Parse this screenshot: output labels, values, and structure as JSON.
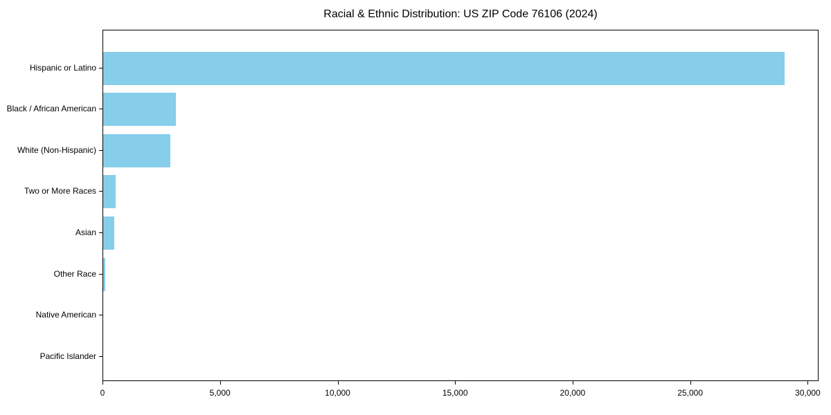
{
  "chart_data": {
    "type": "bar",
    "orientation": "horizontal",
    "title": "Racial & Ethnic Distribution: US ZIP Code 76106 (2024)",
    "categories": [
      "Hispanic or Latino",
      "Black / African American",
      "White (Non-Hispanic)",
      "Two or More Races",
      "Asian",
      "Other Race",
      "Native American",
      "Pacific Islander"
    ],
    "values": [
      29000,
      3080,
      2850,
      520,
      460,
      90,
      0,
      0
    ],
    "xlabel": "",
    "ylabel": "",
    "xlim": [
      0,
      30460
    ],
    "xticks": {
      "values": [
        0,
        5000,
        10000,
        15000,
        20000,
        25000,
        30000
      ],
      "labels": [
        "0",
        "5,000",
        "10,000",
        "15,000",
        "20,000",
        "25,000",
        "30,000"
      ]
    },
    "grid": false,
    "legend": null,
    "bar_color": "#87CEEB",
    "axis_color": "#000000",
    "text_color": "#000000",
    "background_color": "#ffffff"
  }
}
